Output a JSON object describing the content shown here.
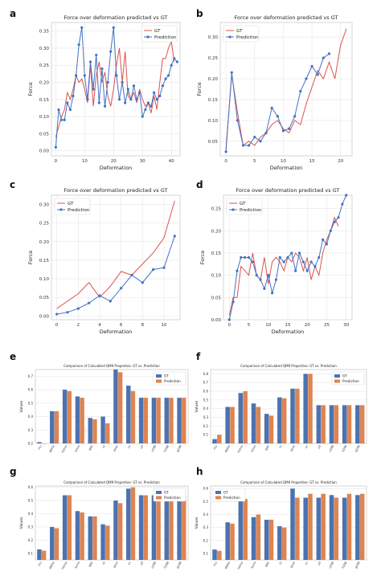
{
  "panels": [
    "a",
    "b",
    "c",
    "d",
    "e",
    "f",
    "g",
    "h"
  ],
  "chart_data": [
    {
      "panel": "a",
      "type": "line",
      "title": "Force over deformation predicted vs GT",
      "xlabel": "Deformation",
      "ylabel": "Force",
      "xlim": [
        -1.5,
        43
      ],
      "ylim": [
        -0.015,
        0.375
      ],
      "xticks": [
        0,
        10,
        20,
        30,
        40
      ],
      "yticks": [
        0.0,
        0.05,
        0.1,
        0.15,
        0.2,
        0.25,
        0.3,
        0.35
      ],
      "ytick_decimals": 2,
      "legend": "top-right",
      "grid": true,
      "series": [
        {
          "name": "GT",
          "color": "#d9534f",
          "marker": false,
          "x": [
            0,
            1,
            2,
            3,
            4,
            5,
            6,
            7,
            8,
            9,
            10,
            11,
            12,
            13,
            14,
            15,
            16,
            17,
            18,
            19,
            20,
            21,
            22,
            23,
            24,
            25,
            26,
            27,
            28,
            29,
            30,
            31,
            32,
            33,
            34,
            35,
            36,
            37,
            38,
            39,
            40,
            41
          ],
          "y": [
            0.04,
            0.07,
            0.1,
            0.12,
            0.17,
            0.15,
            0.18,
            0.22,
            0.2,
            0.21,
            0.18,
            0.14,
            0.25,
            0.13,
            0.22,
            0.26,
            0.2,
            0.23,
            0.16,
            0.13,
            0.18,
            0.25,
            0.3,
            0.2,
            0.29,
            0.16,
            0.15,
            0.17,
            0.14,
            0.18,
            0.15,
            0.13,
            0.14,
            0.11,
            0.16,
            0.12,
            0.2,
            0.27,
            0.27,
            0.3,
            0.32,
            0.26
          ]
        },
        {
          "name": "Prediction",
          "color": "#4472c4",
          "marker": true,
          "x": [
            0,
            1,
            2,
            3,
            4,
            5,
            6,
            7,
            8,
            9,
            10,
            11,
            12,
            13,
            14,
            15,
            16,
            17,
            18,
            19,
            20,
            21,
            22,
            23,
            24,
            25,
            26,
            27,
            28,
            29,
            30,
            31,
            32,
            33,
            34,
            35,
            36,
            37,
            38,
            39,
            40,
            41,
            42
          ],
          "y": [
            0.01,
            0.12,
            0.09,
            0.09,
            0.14,
            0.12,
            0.16,
            0.22,
            0.31,
            0.36,
            0.22,
            0.15,
            0.26,
            0.18,
            0.28,
            0.14,
            0.24,
            0.13,
            0.2,
            0.29,
            0.36,
            0.22,
            0.15,
            0.2,
            0.14,
            0.18,
            0.15,
            0.19,
            0.15,
            0.17,
            0.1,
            0.12,
            0.14,
            0.13,
            0.17,
            0.15,
            0.16,
            0.19,
            0.21,
            0.22,
            0.25,
            0.27,
            0.26
          ]
        }
      ]
    },
    {
      "panel": "b",
      "type": "line",
      "title": "Force over deformation predicted vs GT",
      "xlabel": "Deformation",
      "ylabel": "Force",
      "xlim": [
        -1,
        22
      ],
      "ylim": [
        0.015,
        0.335
      ],
      "xticks": [
        0,
        5,
        10,
        15,
        20
      ],
      "yticks": [
        0.05,
        0.1,
        0.15,
        0.2,
        0.25,
        0.3
      ],
      "ytick_decimals": 2,
      "legend": "top-left",
      "grid": true,
      "series": [
        {
          "name": "GT",
          "color": "#d9534f",
          "marker": false,
          "x": [
            0,
            1,
            2,
            3,
            4,
            5,
            6,
            7,
            8,
            9,
            10,
            11,
            12,
            13,
            14,
            15,
            16,
            17,
            18,
            19,
            20,
            21
          ],
          "y": [
            0.03,
            0.21,
            0.12,
            0.04,
            0.05,
            0.04,
            0.06,
            0.07,
            0.09,
            0.1,
            0.08,
            0.07,
            0.1,
            0.09,
            0.14,
            0.18,
            0.22,
            0.2,
            0.24,
            0.2,
            0.28,
            0.32
          ]
        },
        {
          "name": "Prediction",
          "color": "#4472c4",
          "marker": true,
          "x": [
            0,
            1,
            2,
            3,
            4,
            5,
            6,
            7,
            8,
            9,
            10,
            11,
            12,
            13,
            14,
            15,
            16,
            17,
            18
          ],
          "y": [
            0.025,
            0.215,
            0.1,
            0.04,
            0.04,
            0.06,
            0.05,
            0.07,
            0.13,
            0.11,
            0.075,
            0.08,
            0.11,
            0.17,
            0.2,
            0.23,
            0.21,
            0.25,
            0.26
          ]
        }
      ]
    },
    {
      "panel": "c",
      "type": "line",
      "title": "Force over deformation predicted vs GT",
      "xlabel": "Deformation",
      "ylabel": "Force",
      "xlim": [
        -0.5,
        11.5
      ],
      "ylim": [
        -0.01,
        0.325
      ],
      "xticks": [
        0,
        2,
        4,
        6,
        8,
        10
      ],
      "yticks": [
        0.0,
        0.05,
        0.1,
        0.15,
        0.2,
        0.25,
        0.3
      ],
      "ytick_decimals": 2,
      "legend": "top-left",
      "grid": true,
      "series": [
        {
          "name": "GT",
          "color": "#d9534f",
          "marker": false,
          "x": [
            0,
            1,
            2,
            3,
            4,
            5,
            6,
            7,
            8,
            9,
            10,
            11
          ],
          "y": [
            0.02,
            0.04,
            0.06,
            0.09,
            0.05,
            0.08,
            0.12,
            0.11,
            0.14,
            0.17,
            0.21,
            0.31
          ]
        },
        {
          "name": "Prediction",
          "color": "#4472c4",
          "marker": true,
          "x": [
            0,
            1,
            2,
            3,
            4,
            5,
            6,
            7,
            8,
            9,
            10,
            11
          ],
          "y": [
            0.005,
            0.01,
            0.02,
            0.035,
            0.055,
            0.04,
            0.075,
            0.11,
            0.09,
            0.125,
            0.13,
            0.215
          ]
        }
      ]
    },
    {
      "panel": "d",
      "type": "line",
      "title": "Force over deformation predicted vs GT",
      "xlabel": "Deformation",
      "ylabel": "Force",
      "xlim": [
        -1.5,
        31.5
      ],
      "ylim": [
        0.0,
        0.28
      ],
      "xticks": [
        0,
        5,
        10,
        15,
        20,
        25,
        30
      ],
      "yticks": [
        0.0,
        0.05,
        0.1,
        0.15,
        0.2,
        0.25
      ],
      "ytick_decimals": 2,
      "legend": "top-left",
      "grid": true,
      "series": [
        {
          "name": "GT",
          "color": "#d9534f",
          "marker": false,
          "x": [
            0,
            1,
            2,
            3,
            4,
            5,
            6,
            7,
            8,
            9,
            10,
            11,
            12,
            13,
            14,
            15,
            16,
            17,
            18,
            19,
            20,
            21,
            22,
            23,
            24,
            25,
            26,
            27,
            28
          ],
          "y": [
            0.01,
            0.05,
            0.05,
            0.12,
            0.11,
            0.1,
            0.15,
            0.1,
            0.09,
            0.14,
            0.08,
            0.13,
            0.14,
            0.13,
            0.11,
            0.14,
            0.13,
            0.15,
            0.14,
            0.11,
            0.14,
            0.09,
            0.12,
            0.1,
            0.15,
            0.18,
            0.2,
            0.23,
            0.21
          ]
        },
        {
          "name": "Prediction",
          "color": "#4472c4",
          "marker": true,
          "x": [
            0,
            1,
            2,
            3,
            4,
            5,
            6,
            7,
            8,
            9,
            10,
            11,
            12,
            13,
            14,
            15,
            16,
            17,
            18,
            19,
            20,
            21,
            22,
            23,
            24,
            25,
            26,
            27,
            28,
            29,
            30
          ],
          "y": [
            0.0,
            0.04,
            0.11,
            0.14,
            0.14,
            0.14,
            0.13,
            0.1,
            0.09,
            0.07,
            0.1,
            0.06,
            0.09,
            0.14,
            0.13,
            0.14,
            0.15,
            0.11,
            0.15,
            0.13,
            0.11,
            0.13,
            0.12,
            0.14,
            0.18,
            0.17,
            0.2,
            0.22,
            0.23,
            0.26,
            0.28
          ]
        }
      ]
    },
    {
      "panel": "e",
      "type": "bar",
      "title": "Comparison of Calculated QM9 Properties: GT vs. Prediction",
      "ylabel": "Values",
      "ylim": [
        0.2,
        0.75
      ],
      "yticks": [
        0.2,
        0.3,
        0.4,
        0.5,
        0.6,
        0.7
      ],
      "ytick_decimals": 1,
      "legend": "top-right",
      "grid": true,
      "categories": [
        "mu",
        "alpha",
        "homo",
        "lumo",
        "gap",
        "r2",
        "zpve",
        "cv",
        "u0",
        "u298",
        "h298",
        "g298"
      ],
      "series": [
        {
          "name": "GT",
          "color": "#4c72b0",
          "values": [
            0.21,
            0.44,
            0.6,
            0.55,
            0.39,
            0.4,
            0.75,
            0.63,
            0.54,
            0.54,
            0.54,
            0.54
          ]
        },
        {
          "name": "Prediction",
          "color": "#dd8452",
          "values": [
            0.2,
            0.44,
            0.59,
            0.54,
            0.38,
            0.35,
            0.73,
            0.59,
            0.54,
            0.54,
            0.54,
            0.54
          ]
        }
      ]
    },
    {
      "panel": "f",
      "type": "bar",
      "title": "Comparison of Calculated QM9 Properties: GT vs. Prediction",
      "ylabel": "Values",
      "ylim": [
        0.0,
        0.85
      ],
      "yticks": [
        0.1,
        0.2,
        0.3,
        0.4,
        0.5,
        0.6,
        0.7,
        0.8
      ],
      "ytick_decimals": 1,
      "legend": "top-right",
      "grid": true,
      "categories": [
        "mu",
        "alpha",
        "homo",
        "lumo",
        "gap",
        "r2",
        "zpve",
        "cv",
        "u0",
        "u298",
        "h298",
        "g298"
      ],
      "series": [
        {
          "name": "GT",
          "color": "#4c72b0",
          "values": [
            0.05,
            0.42,
            0.58,
            0.46,
            0.34,
            0.53,
            0.63,
            0.8,
            0.44,
            0.44,
            0.44,
            0.44
          ]
        },
        {
          "name": "Prediction",
          "color": "#dd8452",
          "values": [
            0.1,
            0.42,
            0.6,
            0.42,
            0.32,
            0.52,
            0.63,
            0.8,
            0.44,
            0.44,
            0.44,
            0.44
          ]
        }
      ]
    },
    {
      "panel": "g",
      "type": "bar",
      "title": "Comparison of Calculated QM9 Properties: GT vs. Prediction",
      "ylabel": "Values",
      "ylim": [
        0.05,
        0.61
      ],
      "yticks": [
        0.1,
        0.2,
        0.3,
        0.4,
        0.5,
        0.6
      ],
      "ytick_decimals": 1,
      "legend": "top-right",
      "grid": true,
      "categories": [
        "mu",
        "alpha",
        "homo",
        "lumo",
        "gap",
        "r2",
        "zpve",
        "cv",
        "u0",
        "u298",
        "h298",
        "g298"
      ],
      "series": [
        {
          "name": "GT",
          "color": "#4c72b0",
          "values": [
            0.13,
            0.3,
            0.54,
            0.42,
            0.38,
            0.32,
            0.5,
            0.59,
            0.54,
            0.54,
            0.54,
            0.54
          ]
        },
        {
          "name": "Prediction",
          "color": "#dd8452",
          "values": [
            0.12,
            0.29,
            0.54,
            0.41,
            0.38,
            0.31,
            0.48,
            0.6,
            0.54,
            0.54,
            0.54,
            0.54
          ]
        }
      ]
    },
    {
      "panel": "h",
      "type": "bar",
      "title": "Comparison of Calculated QM9 Properties: GT vs. Prediction",
      "ylabel": "Values",
      "ylim": [
        0.05,
        0.62
      ],
      "yticks": [
        0.1,
        0.2,
        0.3,
        0.4,
        0.5,
        0.6
      ],
      "ytick_decimals": 1,
      "legend": "top-left",
      "grid": true,
      "categories": [
        "mu",
        "alpha",
        "homo",
        "lumo",
        "gap",
        "r2",
        "zpve",
        "cv",
        "u0",
        "u298",
        "h298",
        "g298"
      ],
      "series": [
        {
          "name": "GT",
          "color": "#4c72b0",
          "values": [
            0.13,
            0.34,
            0.52,
            0.38,
            0.36,
            0.31,
            0.6,
            0.53,
            0.53,
            0.55,
            0.53,
            0.55
          ]
        },
        {
          "name": "Prediction",
          "color": "#dd8452",
          "values": [
            0.12,
            0.33,
            0.52,
            0.4,
            0.36,
            0.3,
            0.53,
            0.56,
            0.56,
            0.53,
            0.56,
            0.56
          ]
        }
      ]
    }
  ]
}
